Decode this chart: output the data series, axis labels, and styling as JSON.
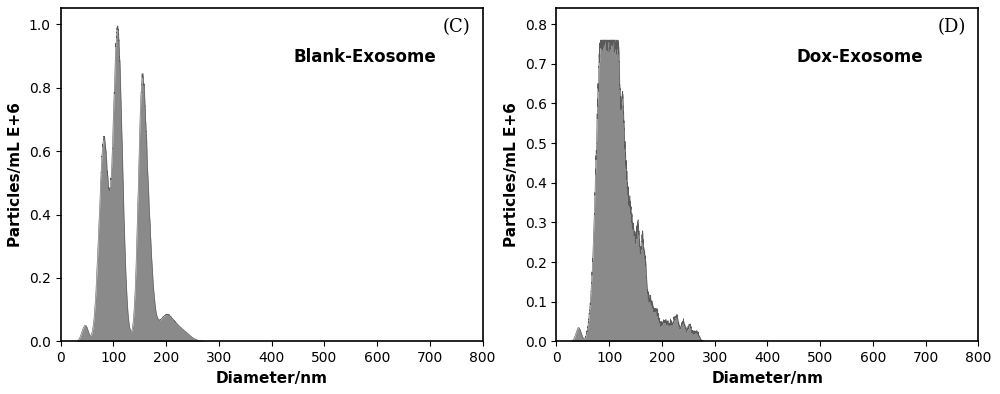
{
  "panel_C": {
    "label": "(C)",
    "title": "Blank-Exosome",
    "xlabel": "Diameter/nm",
    "ylabel": "Particles/mL E+6",
    "xlim": [
      0,
      800
    ],
    "ylim": [
      0,
      1.05
    ],
    "yticks": [
      0.0,
      0.2,
      0.4,
      0.6,
      0.8,
      1.0
    ],
    "xticks": [
      0,
      100,
      200,
      300,
      400,
      500,
      600,
      700,
      800
    ],
    "fill_color": "#8a8a8a",
    "edge_color": "#5a5a5a"
  },
  "panel_D": {
    "label": "(D)",
    "title": "Dox-Exosome",
    "xlabel": "Diameter/nm",
    "ylabel": "Particles/mL E+6",
    "xlim": [
      0,
      800
    ],
    "ylim": [
      0,
      0.84
    ],
    "yticks": [
      0.0,
      0.1,
      0.2,
      0.3,
      0.4,
      0.5,
      0.6,
      0.7,
      0.8
    ],
    "xticks": [
      0,
      100,
      200,
      300,
      400,
      500,
      600,
      700,
      800
    ],
    "fill_color": "#8a8a8a",
    "edge_color": "#5a5a5a"
  },
  "fig_bgcolor": "#ffffff",
  "font_color": "#000000",
  "title_fontsize": 12,
  "label_fontsize": 11,
  "tick_fontsize": 10,
  "annotation_fontsize": 13
}
